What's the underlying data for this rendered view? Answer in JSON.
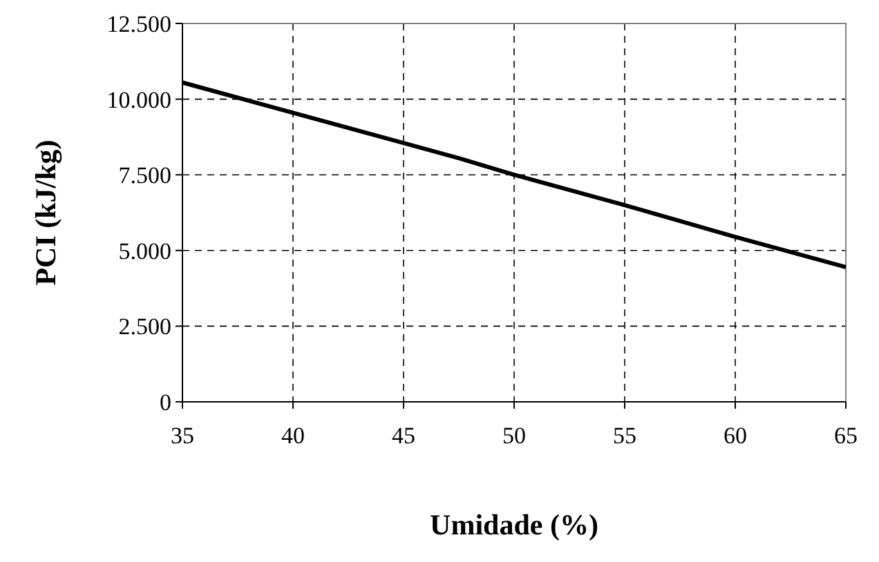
{
  "chart_data": {
    "type": "line",
    "xlabel": "Umidade (%)",
    "ylabel": "PCI (kJ/kg)",
    "x": [
      35,
      40,
      45,
      47.5,
      50,
      55,
      60,
      65
    ],
    "series": [
      {
        "color": "#000000",
        "values": [
          10550,
          9550,
          8550,
          8050,
          7500,
          6500,
          5450,
          4450
        ]
      }
    ],
    "xlim": [
      35,
      65
    ],
    "xticks": [
      35,
      40,
      45,
      50,
      55,
      60,
      65
    ],
    "ylim": [
      0,
      12500
    ],
    "yticks": [
      0,
      {
        "value": 2500,
        "label": "2.500"
      },
      {
        "value": 5000,
        "label": "5.000"
      },
      {
        "value": 7500,
        "label": "7.500"
      },
      {
        "value": 10000,
        "label": "10.000"
      },
      {
        "value": 12500,
        "label": "12.500"
      }
    ],
    "grid": true,
    "marker": "none",
    "line_style": "solid"
  }
}
